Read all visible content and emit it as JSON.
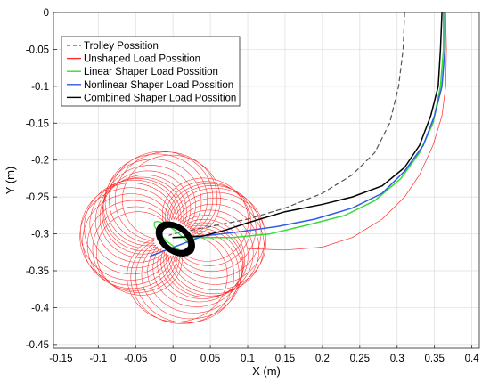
{
  "chart_data": {
    "type": "line",
    "title": "",
    "xlabel": "X (m)",
    "ylabel": "Y (m)",
    "xlim": [
      -0.16,
      0.41
    ],
    "ylim": [
      -0.455,
      0.0
    ],
    "xticks": [
      -0.15,
      -0.1,
      -0.05,
      0,
      0.05,
      0.1,
      0.15,
      0.2,
      0.25,
      0.3,
      0.35,
      0.4
    ],
    "xtick_labels": [
      "-0.15",
      "-0.1",
      "-0.05",
      "0",
      "0.05",
      "0.1",
      "0.15",
      "0.2",
      "0.25",
      "0.3",
      "0.35",
      "0.4"
    ],
    "yticks": [
      0,
      -0.05,
      -0.1,
      -0.15,
      -0.2,
      -0.25,
      -0.3,
      -0.35,
      -0.4,
      -0.45
    ],
    "ytick_labels": [
      "0",
      "-0.05",
      "-0.1",
      "-0.15",
      "-0.2",
      "-0.25",
      "-0.3",
      "-0.35",
      "-0.4",
      "-0.45"
    ],
    "grid": true,
    "legend_position": "top-left",
    "series": [
      {
        "name": "Trolley Possition",
        "color": "#555555",
        "style": "dashed",
        "points": [
          [
            0.31,
            0.0
          ],
          [
            0.308,
            -0.05
          ],
          [
            0.302,
            -0.1
          ],
          [
            0.29,
            -0.15
          ],
          [
            0.27,
            -0.19
          ],
          [
            0.24,
            -0.22
          ],
          [
            0.2,
            -0.245
          ],
          [
            0.15,
            -0.265
          ],
          [
            0.1,
            -0.28
          ],
          [
            0.05,
            -0.29
          ],
          [
            0.0,
            -0.3
          ],
          [
            -0.005,
            -0.302
          ]
        ]
      },
      {
        "name": "Unshaped Load Possition",
        "color": "#ff2a2a",
        "style": "solid",
        "tail": [
          [
            0.365,
            0.0
          ],
          [
            0.366,
            -0.05
          ],
          [
            0.365,
            -0.1
          ],
          [
            0.36,
            -0.14
          ],
          [
            0.348,
            -0.18
          ],
          [
            0.33,
            -0.22
          ],
          [
            0.31,
            -0.25
          ],
          [
            0.28,
            -0.28
          ],
          [
            0.24,
            -0.305
          ],
          [
            0.2,
            -0.318
          ],
          [
            0.15,
            -0.322
          ],
          [
            0.1,
            -0.32
          ]
        ],
        "oscillation": {
          "center": [
            0.0,
            -0.305
          ],
          "amplitude_outer": 0.125,
          "amplitude_inner": 0.026,
          "loops": 34
        }
      },
      {
        "name": "Linear Shaper Load Possition",
        "color": "#33dd33",
        "style": "solid",
        "points": [
          [
            0.362,
            0.0
          ],
          [
            0.362,
            -0.05
          ],
          [
            0.358,
            -0.1
          ],
          [
            0.348,
            -0.15
          ],
          [
            0.33,
            -0.19
          ],
          [
            0.305,
            -0.225
          ],
          [
            0.27,
            -0.255
          ],
          [
            0.23,
            -0.275
          ],
          [
            0.18,
            -0.288
          ],
          [
            0.13,
            -0.3
          ],
          [
            0.08,
            -0.305
          ],
          [
            0.04,
            -0.305
          ],
          [
            0.0,
            -0.305
          ]
        ]
      },
      {
        "name": "Nonlinear Shaper Load Possition",
        "color": "#2f5be8",
        "style": "solid",
        "points": [
          [
            0.364,
            0.0
          ],
          [
            0.364,
            -0.05
          ],
          [
            0.36,
            -0.1
          ],
          [
            0.35,
            -0.14
          ],
          [
            0.335,
            -0.18
          ],
          [
            0.31,
            -0.215
          ],
          [
            0.28,
            -0.245
          ],
          [
            0.24,
            -0.265
          ],
          [
            0.19,
            -0.28
          ],
          [
            0.14,
            -0.29
          ],
          [
            0.09,
            -0.297
          ],
          [
            0.04,
            -0.303
          ],
          [
            -0.03,
            -0.33
          ]
        ]
      },
      {
        "name": "Combined Shaper Load Possition",
        "color": "#000000",
        "style": "solid",
        "points": [
          [
            0.36,
            0.0
          ],
          [
            0.358,
            -0.05
          ],
          [
            0.355,
            -0.1
          ],
          [
            0.345,
            -0.14
          ],
          [
            0.33,
            -0.18
          ],
          [
            0.31,
            -0.21
          ],
          [
            0.28,
            -0.235
          ],
          [
            0.24,
            -0.25
          ],
          [
            0.2,
            -0.26
          ],
          [
            0.15,
            -0.27
          ],
          [
            0.1,
            -0.285
          ],
          [
            0.07,
            -0.295
          ],
          [
            0.04,
            -0.303
          ],
          [
            0.0,
            -0.305
          ]
        ],
        "ellipse": {
          "center": [
            0.003,
            -0.307
          ],
          "rx": 0.028,
          "ry": 0.018,
          "tilt_deg": -38,
          "loops": 8
        }
      }
    ]
  }
}
